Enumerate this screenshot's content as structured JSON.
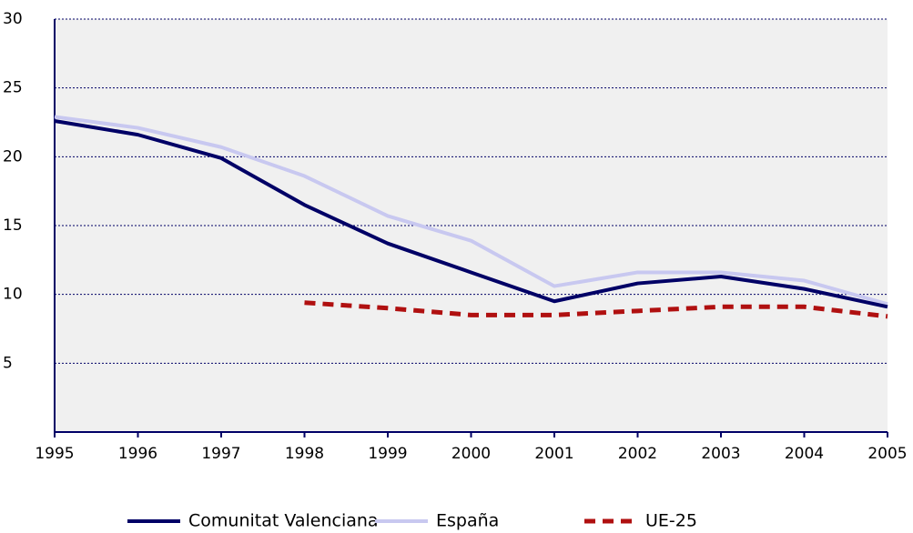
{
  "chart_data": {
    "type": "line",
    "x": [
      1995,
      1996,
      1997,
      1998,
      1999,
      2000,
      2001,
      2002,
      2003,
      2004,
      2005
    ],
    "xlim": [
      1995,
      2005
    ],
    "xticks": [
      1995,
      1996,
      1997,
      1998,
      1999,
      2000,
      2001,
      2002,
      2003,
      2004,
      2005
    ],
    "ylim": [
      0,
      30
    ],
    "yticks": [
      5,
      10,
      15,
      20,
      25,
      30
    ],
    "grid": true,
    "legend": "bottom",
    "series": [
      {
        "name": "Comunitat Valenciana",
        "color": "#000066",
        "dash": false,
        "values": [
          22.6,
          21.6,
          19.9,
          16.5,
          13.7,
          11.6,
          9.5,
          10.8,
          11.3,
          10.4,
          9.1
        ]
      },
      {
        "name": "España",
        "color": "#c8c8f0",
        "dash": false,
        "values": [
          22.9,
          22.1,
          20.7,
          18.6,
          15.7,
          13.9,
          10.6,
          11.6,
          11.6,
          11.0,
          9.3
        ]
      },
      {
        "name": "UE-25",
        "color": "#b01010",
        "dash": true,
        "values": [
          null,
          null,
          null,
          9.4,
          9.0,
          8.5,
          8.5,
          8.8,
          9.1,
          9.1,
          8.4
        ]
      }
    ]
  }
}
